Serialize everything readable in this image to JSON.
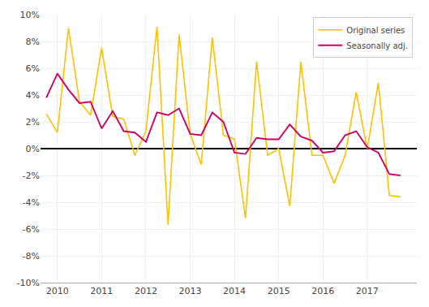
{
  "chart_data": {
    "type": "line",
    "x": [
      2009.75,
      2010.0,
      2010.25,
      2010.5,
      2010.75,
      2011.0,
      2011.25,
      2011.5,
      2011.75,
      2012.0,
      2012.25,
      2012.5,
      2012.75,
      2013.0,
      2013.25,
      2013.5,
      2013.75,
      2014.0,
      2014.25,
      2014.5,
      2014.75,
      2015.0,
      2015.25,
      2015.5,
      2015.75,
      2016.0,
      2016.25,
      2016.5,
      2016.75,
      2017.0,
      2017.25,
      2017.5,
      2017.75
    ],
    "series": [
      {
        "name": "Original series",
        "color": "#FFC000",
        "values": [
          0.026,
          0.012,
          0.09,
          0.035,
          0.025,
          0.075,
          0.024,
          0.022,
          -0.005,
          0.013,
          0.091,
          -0.057,
          0.085,
          0.011,
          -0.012,
          0.083,
          0.01,
          0.007,
          -0.052,
          0.065,
          -0.005,
          0.0,
          -0.043,
          0.065,
          -0.005,
          -0.005,
          -0.026,
          -0.005,
          0.042,
          0.0,
          0.049,
          -0.035,
          -0.036
        ]
      },
      {
        "name": "Seasonally adj.",
        "color": "#CC0066",
        "values": [
          0.038,
          0.056,
          0.044,
          0.034,
          0.035,
          0.015,
          0.028,
          0.013,
          0.012,
          0.005,
          0.027,
          0.025,
          0.03,
          0.011,
          0.01,
          0.027,
          0.02,
          -0.003,
          -0.004,
          0.008,
          0.007,
          0.007,
          0.018,
          0.009,
          0.006,
          -0.003,
          -0.002,
          0.01,
          0.013,
          0.001,
          -0.003,
          -0.019,
          -0.02
        ]
      }
    ],
    "xlim": [
      2009.62,
      2018.12
    ],
    "xticks": [
      2010,
      2011,
      2012,
      2013,
      2014,
      2015,
      2016,
      2017
    ],
    "ylim": [
      -0.1,
      0.1
    ],
    "yticks": [
      {
        "value": -0.1,
        "label": "-10%"
      },
      {
        "value": -0.08,
        "label": "-8%"
      },
      {
        "value": -0.06,
        "label": "-6%"
      },
      {
        "value": -0.04,
        "label": "-4%"
      },
      {
        "value": -0.02,
        "label": "-2%"
      },
      {
        "value": 0.0,
        "label": "0%"
      },
      {
        "value": 0.02,
        "label": "2%"
      },
      {
        "value": 0.04,
        "label": "4%"
      },
      {
        "value": 0.06,
        "label": "6%"
      },
      {
        "value": 0.08,
        "label": "8%"
      },
      {
        "value": 0.1,
        "label": "10%"
      }
    ],
    "grid": true,
    "legend": "upper right"
  }
}
